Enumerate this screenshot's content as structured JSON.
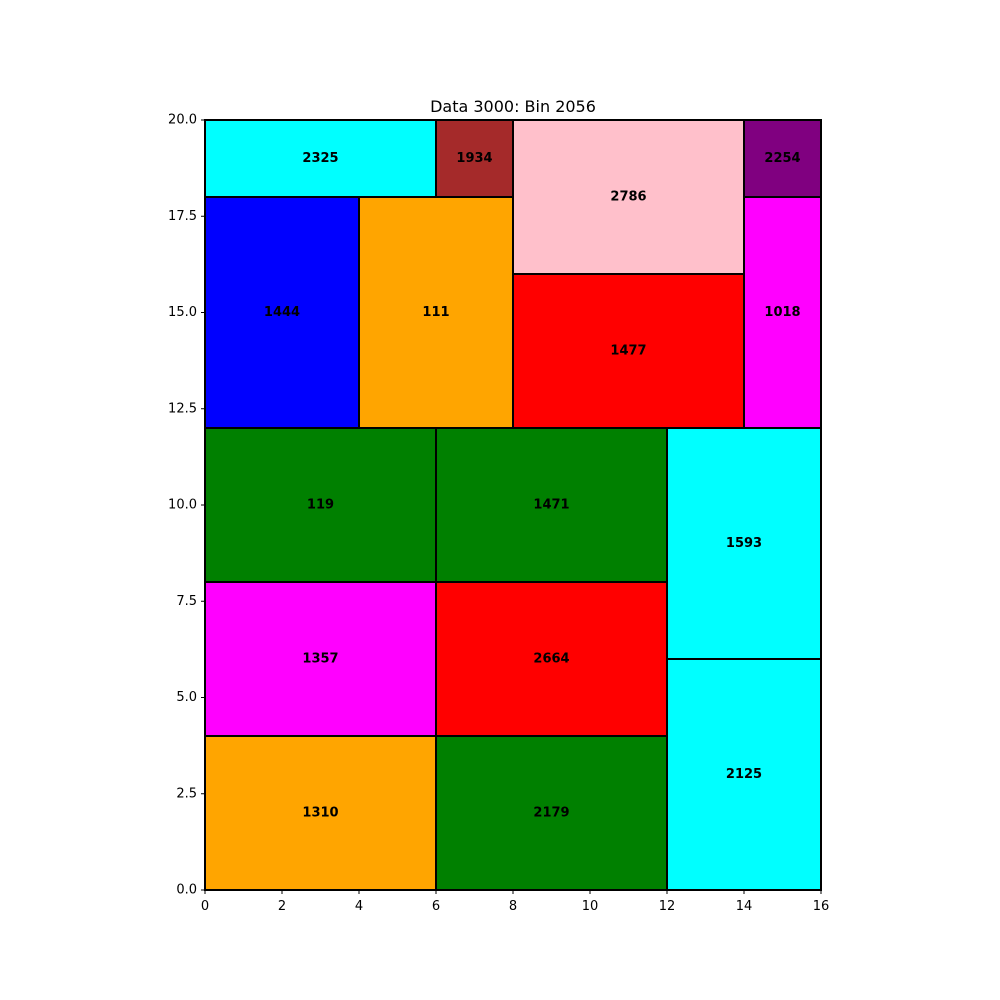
{
  "chart_data": {
    "type": "rect-packing",
    "title": "Data 3000: Bin 2056",
    "xlabel": "",
    "ylabel": "",
    "xlim": [
      0,
      16
    ],
    "ylim": [
      0,
      20
    ],
    "xticks": [
      0,
      2,
      4,
      6,
      8,
      10,
      12,
      14,
      16
    ],
    "xtick_labels": [
      "0",
      "2",
      "4",
      "6",
      "8",
      "10",
      "12",
      "14",
      "16"
    ],
    "yticks": [
      0,
      2.5,
      5,
      7.5,
      10,
      12.5,
      15,
      17.5,
      20
    ],
    "ytick_labels": [
      "0.0",
      "2.5",
      "5.0",
      "7.5",
      "10.0",
      "12.5",
      "15.0",
      "17.5",
      "20.0"
    ],
    "grid": false,
    "rects": [
      {
        "label": "1310",
        "x": 0,
        "y": 0,
        "w": 6,
        "h": 4,
        "color": "#ffa500"
      },
      {
        "label": "2179",
        "x": 6,
        "y": 0,
        "w": 6,
        "h": 4,
        "color": "#008000"
      },
      {
        "label": "2125",
        "x": 12,
        "y": 0,
        "w": 4,
        "h": 6,
        "color": "#00ffff"
      },
      {
        "label": "1357",
        "x": 0,
        "y": 4,
        "w": 6,
        "h": 4,
        "color": "#ff00ff"
      },
      {
        "label": "2664",
        "x": 6,
        "y": 4,
        "w": 6,
        "h": 4,
        "color": "#ff0000"
      },
      {
        "label": "1593",
        "x": 12,
        "y": 6,
        "w": 4,
        "h": 6,
        "color": "#00ffff"
      },
      {
        "label": "119",
        "x": 0,
        "y": 8,
        "w": 6,
        "h": 4,
        "color": "#008000"
      },
      {
        "label": "1471",
        "x": 6,
        "y": 8,
        "w": 6,
        "h": 4,
        "color": "#008000"
      },
      {
        "label": "1444",
        "x": 0,
        "y": 12,
        "w": 4,
        "h": 6,
        "color": "#0000ff"
      },
      {
        "label": "111",
        "x": 4,
        "y": 12,
        "w": 4,
        "h": 6,
        "color": "#ffa500"
      },
      {
        "label": "1477",
        "x": 8,
        "y": 12,
        "w": 6,
        "h": 4,
        "color": "#ff0000"
      },
      {
        "label": "1018",
        "x": 14,
        "y": 12,
        "w": 2,
        "h": 6,
        "color": "#ff00ff"
      },
      {
        "label": "2786",
        "x": 8,
        "y": 16,
        "w": 6,
        "h": 4,
        "color": "#ffc0cb"
      },
      {
        "label": "2325",
        "x": 0,
        "y": 18,
        "w": 6,
        "h": 2,
        "color": "#00ffff"
      },
      {
        "label": "1934",
        "x": 6,
        "y": 18,
        "w": 2,
        "h": 2,
        "color": "#a52a2a"
      },
      {
        "label": "2254",
        "x": 14,
        "y": 18,
        "w": 2,
        "h": 2,
        "color": "#800080"
      }
    ]
  }
}
